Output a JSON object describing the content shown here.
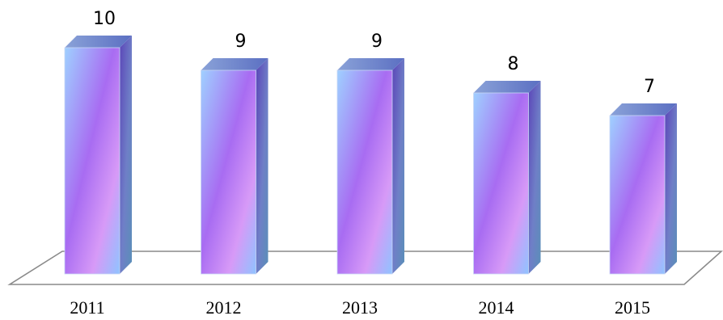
{
  "chart_data": {
    "type": "bar",
    "categories": [
      "2011",
      "2012",
      "2013",
      "2014",
      "2015"
    ],
    "values": [
      10,
      9,
      9,
      8,
      7
    ],
    "title": "",
    "xlabel": "",
    "ylabel": "",
    "ylim": [
      0,
      10
    ],
    "grid": false,
    "legend": "none",
    "data_labels": true,
    "style": "3d-column",
    "colors": {
      "front_light": "#9fd0ff",
      "front_mid": "#a86cf2",
      "front_dark": "#6f47cf",
      "side": "#5a78b8",
      "top": "#6e7fcf",
      "floor_stroke": "#8a8a8a"
    }
  }
}
